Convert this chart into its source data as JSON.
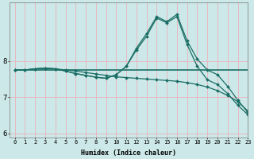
{
  "xlabel": "Humidex (Indice chaleur)",
  "background_color": "#cce8e8",
  "grid_color": "#e8b8c0",
  "line_color": "#1a6e65",
  "xlim": [
    -0.5,
    23
  ],
  "ylim": [
    5.9,
    9.6
  ],
  "yticks": [
    6,
    7,
    8
  ],
  "xticks": [
    0,
    1,
    2,
    3,
    4,
    5,
    6,
    7,
    8,
    9,
    10,
    11,
    12,
    13,
    14,
    15,
    16,
    17,
    18,
    19,
    20,
    21,
    22,
    23
  ],
  "series": [
    {
      "x": [
        0,
        1,
        2,
        3,
        4,
        5,
        6,
        7,
        8,
        9,
        10,
        11,
        12,
        13,
        14,
        15,
        16,
        17,
        18,
        19,
        20,
        21,
        22,
        23
      ],
      "y": [
        7.75,
        7.75,
        7.75,
        7.75,
        7.75,
        7.75,
        7.75,
        7.75,
        7.75,
        7.75,
        7.75,
        7.75,
        7.75,
        7.75,
        7.75,
        7.75,
        7.75,
        7.75,
        7.75,
        7.75,
        7.75,
        7.75,
        7.75,
        7.75
      ],
      "has_marker": false,
      "linewidth": 1.2
    },
    {
      "x": [
        0,
        1,
        2,
        3,
        4,
        5,
        6,
        7,
        8,
        9,
        10,
        11,
        12,
        13,
        14,
        15,
        16,
        17,
        18,
        19,
        20,
        21,
        22,
        23
      ],
      "y": [
        7.75,
        7.75,
        7.78,
        7.8,
        7.78,
        7.75,
        7.72,
        7.68,
        7.64,
        7.6,
        7.56,
        7.54,
        7.52,
        7.5,
        7.48,
        7.46,
        7.44,
        7.4,
        7.35,
        7.28,
        7.18,
        7.05,
        6.88,
        6.62
      ],
      "has_marker": true,
      "linewidth": 0.9
    },
    {
      "x": [
        0,
        1,
        2,
        3,
        4,
        5,
        6,
        7,
        8,
        9,
        10,
        11,
        12,
        13,
        14,
        15,
        16,
        17,
        18,
        19,
        20,
        21,
        22,
        23
      ],
      "y": [
        7.75,
        7.75,
        7.78,
        7.8,
        7.78,
        7.72,
        7.65,
        7.6,
        7.55,
        7.52,
        7.62,
        7.85,
        8.35,
        8.75,
        9.22,
        9.08,
        9.28,
        8.55,
        8.05,
        7.75,
        7.62,
        7.3,
        6.92,
        6.58
      ],
      "has_marker": true,
      "linewidth": 0.9
    },
    {
      "x": [
        0,
        1,
        2,
        3,
        4,
        5,
        6,
        7,
        8,
        9,
        10,
        11,
        12,
        13,
        14,
        15,
        16,
        17,
        18,
        19,
        20,
        21,
        22,
        23
      ],
      "y": [
        7.75,
        7.75,
        7.78,
        7.8,
        7.78,
        7.72,
        7.65,
        7.6,
        7.55,
        7.52,
        7.62,
        7.85,
        8.3,
        8.68,
        9.18,
        9.05,
        9.22,
        8.45,
        7.85,
        7.48,
        7.35,
        7.1,
        6.78,
        6.52
      ],
      "has_marker": true,
      "linewidth": 0.9
    }
  ]
}
